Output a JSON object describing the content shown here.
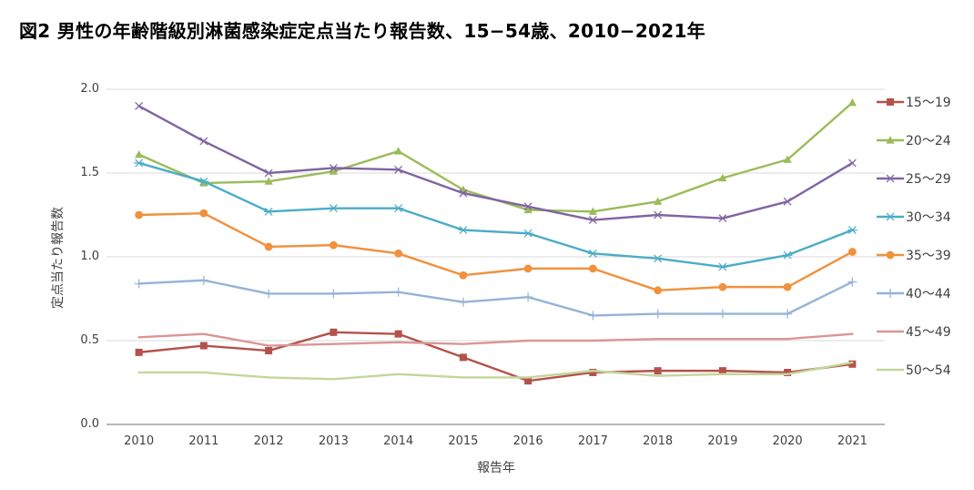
{
  "title": "図2 男性の年齢階級別淋菌感染症定点当たり報告数、15−54歳、2010−2021年",
  "chart_data": {
    "type": "line",
    "title": "図2 男性の年齢階級別淋菌感染症定点当たり報告数、15−54歳、2010−2021年",
    "x": [
      "2010",
      "2011",
      "2012",
      "2013",
      "2014",
      "2015",
      "2016",
      "2017",
      "2018",
      "2019",
      "2020",
      "2021"
    ],
    "xlabel": "報告年",
    "ylabel": "定点当たり報告数",
    "ylim": [
      0.0,
      2.0
    ],
    "yticks": [
      "0.0",
      "0.5",
      "1.0",
      "1.5",
      "2.0"
    ],
    "grid": true,
    "legend_position": "right",
    "axis_color": "#8c8c8c",
    "gridline_color": "#d9d9d9",
    "series": [
      {
        "name": "15～19",
        "color": "#b3524b",
        "marker": "square",
        "values": [
          0.43,
          0.47,
          0.44,
          0.55,
          0.54,
          0.4,
          0.26,
          0.31,
          0.32,
          0.32,
          0.31,
          0.36
        ]
      },
      {
        "name": "20～24",
        "color": "#9bbb59",
        "marker": "triangle",
        "values": [
          1.61,
          1.44,
          1.45,
          1.51,
          1.63,
          1.4,
          1.28,
          1.27,
          1.33,
          1.47,
          1.58,
          1.92
        ]
      },
      {
        "name": "25～29",
        "color": "#8064a2",
        "marker": "x",
        "values": [
          1.9,
          1.69,
          1.5,
          1.53,
          1.52,
          1.38,
          1.3,
          1.22,
          1.25,
          1.23,
          1.33,
          1.56
        ]
      },
      {
        "name": "30～34",
        "color": "#4bacc6",
        "marker": "asterisk",
        "values": [
          1.56,
          1.45,
          1.27,
          1.29,
          1.29,
          1.16,
          1.14,
          1.02,
          0.99,
          0.94,
          1.01,
          1.16
        ]
      },
      {
        "name": "35～39",
        "color": "#f0913d",
        "marker": "circle",
        "values": [
          1.25,
          1.26,
          1.06,
          1.07,
          1.02,
          0.89,
          0.93,
          0.93,
          0.8,
          0.82,
          0.82,
          1.03
        ]
      },
      {
        "name": "40～44",
        "color": "#95b3d7",
        "marker": "plus",
        "values": [
          0.84,
          0.86,
          0.78,
          0.78,
          0.79,
          0.73,
          0.76,
          0.65,
          0.66,
          0.66,
          0.66,
          0.85
        ]
      },
      {
        "name": "45～49",
        "color": "#d99694",
        "marker": "none",
        "values": [
          0.52,
          0.54,
          0.47,
          0.48,
          0.49,
          0.48,
          0.5,
          0.5,
          0.51,
          0.51,
          0.51,
          0.54
        ]
      },
      {
        "name": "50～54",
        "color": "#c3d69b",
        "marker": "none",
        "values": [
          0.31,
          0.31,
          0.28,
          0.27,
          0.3,
          0.28,
          0.28,
          0.32,
          0.29,
          0.3,
          0.3,
          0.37
        ]
      }
    ]
  }
}
